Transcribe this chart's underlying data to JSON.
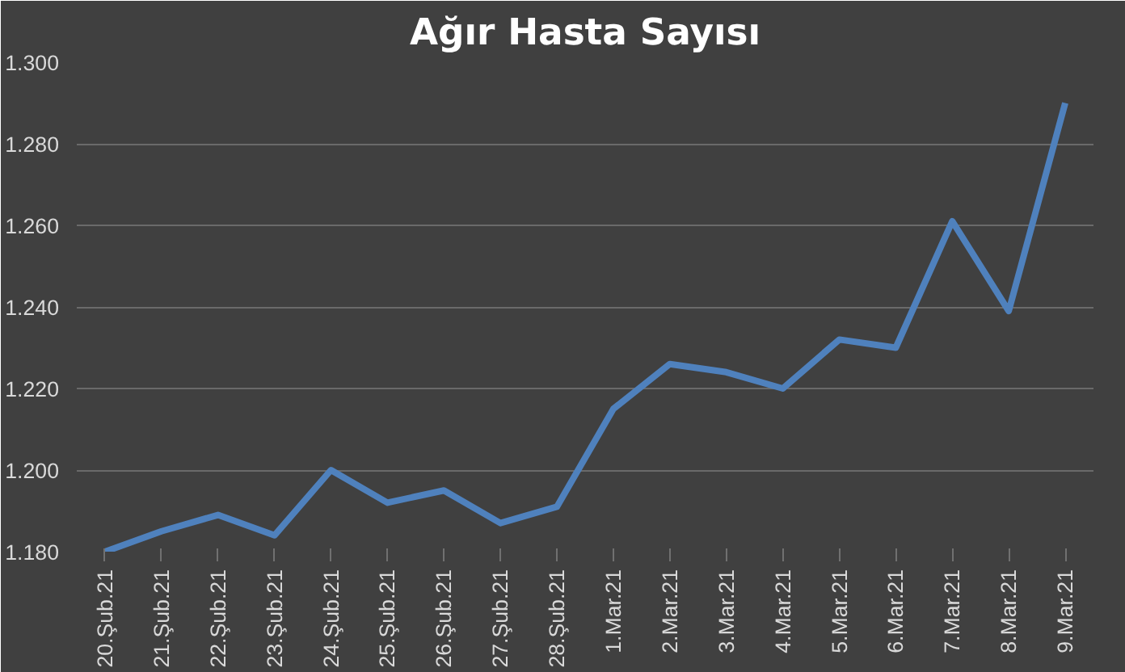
{
  "chart_data": {
    "type": "line",
    "title": "Ağır Hasta Sayısı",
    "categories": [
      "20.Şub.21",
      "21.Şub.21",
      "22.Şub.21",
      "23.Şub.21",
      "24.Şub.21",
      "25.Şub.21",
      "26.Şub.21",
      "27.Şub.21",
      "28.Şub.21",
      "1.Mar.21",
      "2.Mar.21",
      "3.Mar.21",
      "4.Mar.21",
      "5.Mar.21",
      "6.Mar.21",
      "7.Mar.21",
      "8.Mar.21",
      "9.Mar.21"
    ],
    "series": [
      {
        "color": "#4f81bd",
        "values": [
          1180,
          1185,
          1189,
          1184,
          1200,
          1192,
          1195,
          1187,
          1191,
          1215,
          1226,
          1224,
          1220,
          1232,
          1230,
          1261,
          1239,
          1290
        ]
      }
    ],
    "ylim": [
      1180,
      1300
    ],
    "yticks": [
      {
        "value": 1180,
        "label": "1.180"
      },
      {
        "value": 1200,
        "label": "1.200"
      },
      {
        "value": 1220,
        "label": "1.220"
      },
      {
        "value": 1240,
        "label": "1.240"
      },
      {
        "value": 1260,
        "label": "1.260"
      },
      {
        "value": 1280,
        "label": "1.280"
      },
      {
        "value": 1300,
        "label": "1.300"
      }
    ],
    "grid": "y",
    "marker": "none",
    "line_style": "solid"
  }
}
